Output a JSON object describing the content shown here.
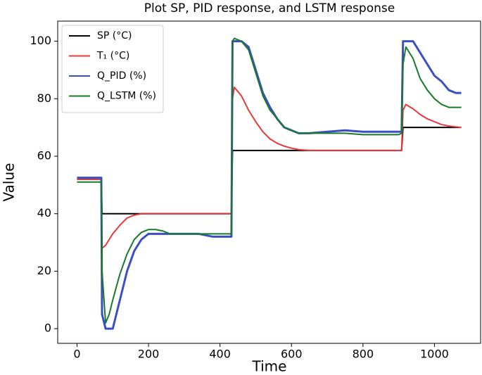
{
  "chart_data": {
    "type": "line",
    "title": "Plot SP, PID response, and LSTM response",
    "x_label": "Time",
    "y_label": "Value",
    "x": [
      0,
      60,
      68,
      70,
      80,
      90,
      100,
      120,
      140,
      160,
      180,
      200,
      220,
      240,
      260,
      300,
      340,
      380,
      420,
      432,
      435,
      440,
      460,
      480,
      500,
      520,
      540,
      560,
      580,
      600,
      620,
      650,
      700,
      750,
      800,
      850,
      900,
      908,
      912,
      920,
      940,
      960,
      980,
      1000,
      1020,
      1040,
      1060,
      1075
    ],
    "series": [
      {
        "name": "SP (°C)",
        "color": "#000000",
        "values": [
          52,
          52,
          52,
          40,
          40,
          40,
          40,
          40,
          40,
          40,
          40,
          40,
          40,
          40,
          40,
          40,
          40,
          40,
          40,
          40,
          62,
          62,
          62,
          62,
          62,
          62,
          62,
          62,
          62,
          62,
          62,
          62,
          62,
          62,
          62,
          62,
          62,
          62,
          70,
          70,
          70,
          70,
          70,
          70,
          70,
          70,
          70,
          70
        ]
      },
      {
        "name": "T₁ (°C)",
        "color": "#e8383d",
        "values": [
          52,
          52,
          52,
          28,
          29,
          31,
          33,
          36,
          38.5,
          39.5,
          40,
          40,
          40,
          40,
          40,
          40,
          40,
          40,
          40,
          40,
          80,
          84,
          81,
          76,
          72,
          68.5,
          66,
          64.5,
          63.5,
          62.8,
          62.3,
          62,
          62,
          62,
          62,
          62,
          62,
          62,
          76,
          78,
          76.5,
          74.5,
          73,
          72,
          71,
          70.5,
          70.2,
          70
        ]
      },
      {
        "name": "Q_PID (%)",
        "color": "#3a4fc4",
        "values": [
          52.5,
          52.5,
          52.5,
          5,
          0,
          0,
          0,
          10,
          20,
          27,
          31,
          33,
          33,
          33,
          33,
          33,
          33,
          32,
          32,
          32,
          100,
          100,
          100,
          98,
          90,
          82,
          77,
          73,
          70,
          69,
          68,
          68,
          68.5,
          69,
          68.5,
          68.5,
          68.5,
          68.5,
          100,
          100,
          100,
          96,
          92,
          88,
          86,
          83,
          82,
          82
        ]
      },
      {
        "name": "Q_LSTM (%)",
        "color": "#1a7a2a",
        "values": [
          51,
          51,
          51,
          20,
          2,
          5,
          10,
          19,
          26,
          31,
          33.5,
          34.5,
          34.5,
          34,
          33,
          33,
          33,
          33,
          33,
          33,
          100,
          101,
          100,
          97,
          89,
          81,
          76,
          73,
          70,
          69,
          68,
          68,
          68,
          68,
          67.5,
          67.5,
          67.5,
          68,
          92,
          98,
          94,
          87,
          83,
          80,
          78,
          77,
          77,
          77
        ]
      }
    ],
    "xlim": [
      -54,
      1129
    ],
    "ylim": [
      -5.1,
      107
    ],
    "xticks": [
      0,
      200,
      400,
      600,
      800,
      1000
    ],
    "yticks": [
      0,
      20,
      40,
      60,
      80,
      100
    ],
    "legend": "upper left",
    "grid": false
  }
}
